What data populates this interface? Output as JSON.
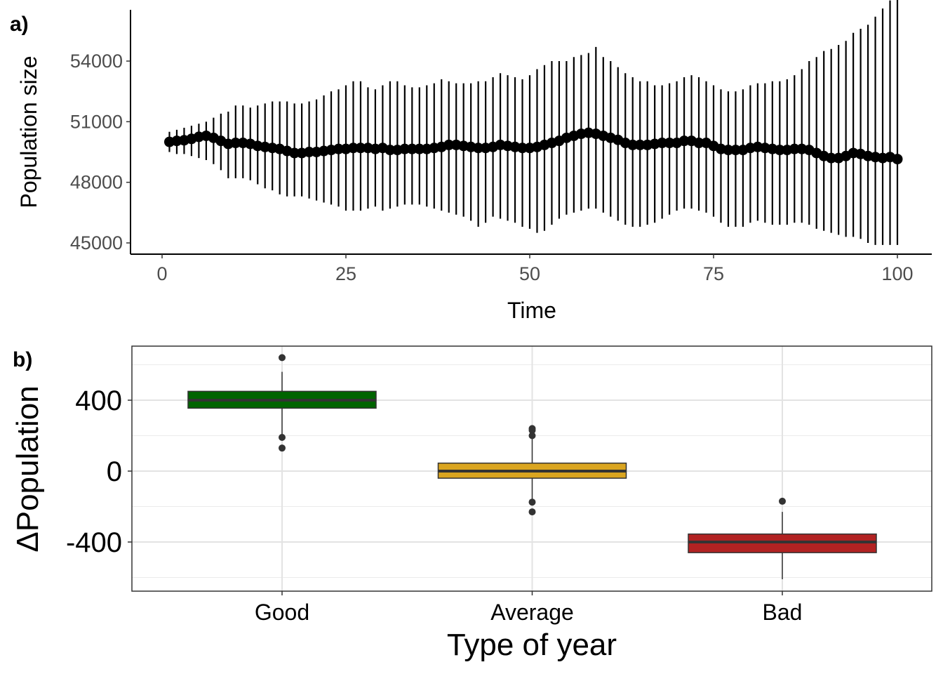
{
  "chart_data": [
    {
      "panel_label": "a)",
      "type": "scatter",
      "xlabel": "Time",
      "ylabel": "Population size",
      "xlim": [
        0,
        100
      ],
      "ylim": [
        44500,
        57800
      ],
      "xticks": [
        0,
        25,
        50,
        75,
        100
      ],
      "xtick_labels": [
        "0",
        "25",
        "50",
        "75",
        "100"
      ],
      "yticks": [
        45000,
        48000,
        51000,
        54000
      ],
      "ytick_labels": [
        "45000",
        "48000",
        "51000",
        "54000"
      ],
      "grid": false,
      "x": [
        1,
        2,
        3,
        4,
        5,
        6,
        7,
        8,
        9,
        10,
        11,
        12,
        13,
        14,
        15,
        16,
        17,
        18,
        19,
        20,
        21,
        22,
        23,
        24,
        25,
        26,
        27,
        28,
        29,
        30,
        31,
        32,
        33,
        34,
        35,
        36,
        37,
        38,
        39,
        40,
        41,
        42,
        43,
        44,
        45,
        46,
        47,
        48,
        49,
        50,
        51,
        52,
        53,
        54,
        55,
        56,
        57,
        58,
        59,
        60,
        61,
        62,
        63,
        64,
        65,
        66,
        67,
        68,
        69,
        70,
        71,
        72,
        73,
        74,
        75,
        76,
        77,
        78,
        79,
        80,
        81,
        82,
        83,
        84,
        85,
        86,
        87,
        88,
        89,
        90,
        91,
        92,
        93,
        94,
        95,
        96,
        97,
        98,
        99,
        100
      ],
      "y": [
        50000,
        50050,
        50080,
        50150,
        50250,
        50300,
        50200,
        50050,
        49900,
        49950,
        49950,
        49900,
        49800,
        49750,
        49700,
        49650,
        49550,
        49450,
        49450,
        49500,
        49500,
        49550,
        49600,
        49650,
        49650,
        49700,
        49700,
        49700,
        49650,
        49700,
        49600,
        49600,
        49650,
        49650,
        49650,
        49650,
        49700,
        49750,
        49850,
        49850,
        49800,
        49750,
        49700,
        49700,
        49750,
        49850,
        49800,
        49750,
        49700,
        49700,
        49750,
        49850,
        49950,
        50050,
        50200,
        50300,
        50400,
        50450,
        50400,
        50300,
        50200,
        50100,
        49950,
        49850,
        49850,
        49850,
        49900,
        49950,
        49950,
        49950,
        50050,
        50050,
        49950,
        49950,
        49800,
        49650,
        49600,
        49600,
        49600,
        49700,
        49750,
        49700,
        49650,
        49600,
        49600,
        49650,
        49650,
        49600,
        49450,
        49300,
        49200,
        49200,
        49300,
        49450,
        49400,
        49300,
        49250,
        49200,
        49250,
        49150
      ],
      "err_low": [
        49500,
        49400,
        49400,
        49300,
        49200,
        49100,
        48900,
        48600,
        48200,
        48200,
        48200,
        48100,
        47900,
        47700,
        47600,
        47400,
        47300,
        47300,
        47300,
        47200,
        47100,
        47000,
        46900,
        46800,
        46600,
        46600,
        46600,
        46700,
        46800,
        46600,
        46700,
        46800,
        46900,
        46900,
        46900,
        46800,
        46700,
        46600,
        46500,
        46400,
        46300,
        46100,
        45800,
        46000,
        46300,
        46200,
        46100,
        46000,
        45800,
        45700,
        45500,
        45600,
        45900,
        46200,
        46400,
        46500,
        46600,
        46700,
        46700,
        46500,
        46300,
        46100,
        45900,
        45800,
        45800,
        45900,
        46000,
        46200,
        46400,
        46600,
        46700,
        46700,
        46600,
        46500,
        46300,
        46000,
        45800,
        45800,
        45800,
        46000,
        46100,
        46000,
        45900,
        45900,
        45900,
        46000,
        46000,
        45900,
        45700,
        45600,
        45500,
        45400,
        45300,
        45300,
        45200,
        45000,
        44900,
        44900,
        44900,
        44900
      ],
      "err_high": [
        50500,
        50600,
        50700,
        50800,
        50900,
        51000,
        51200,
        51400,
        51500,
        51800,
        51800,
        51700,
        51800,
        51900,
        52000,
        52000,
        52000,
        51900,
        51900,
        52000,
        52100,
        52300,
        52500,
        52600,
        52800,
        53000,
        53000,
        52700,
        52600,
        52800,
        53000,
        53000,
        52800,
        52700,
        52700,
        52800,
        52900,
        53100,
        53000,
        52900,
        52900,
        52900,
        53000,
        53000,
        53200,
        53400,
        53300,
        53200,
        53100,
        53300,
        53600,
        53800,
        54000,
        54000,
        54000,
        54200,
        54300,
        54400,
        54700,
        54200,
        54000,
        53700,
        53400,
        53200,
        53000,
        53000,
        52800,
        52800,
        52900,
        53000,
        53200,
        53300,
        53200,
        53000,
        52800,
        52600,
        52500,
        52500,
        52600,
        52800,
        52900,
        52900,
        53000,
        53000,
        53100,
        53300,
        53600,
        54000,
        54200,
        54500,
        54600,
        54800,
        55000,
        55400,
        55600,
        55800,
        56200,
        56600,
        57000,
        57600
      ]
    },
    {
      "panel_label": "b)",
      "type": "box",
      "xlabel": "Type of year",
      "ylabel": "ΔPopulation",
      "ylim": [
        -610,
        700
      ],
      "yticks": [
        -400,
        0,
        400
      ],
      "ytick_labels": [
        "-400",
        "0",
        "400"
      ],
      "grid": true,
      "categories": [
        "Good",
        "Average",
        "Bad"
      ],
      "colors": [
        "#006400",
        "#DAA520",
        "#B22222"
      ],
      "boxes": [
        {
          "category": "Good",
          "q1": 355,
          "median": 400,
          "q3": 450,
          "whisker_low": 200,
          "whisker_high": 560,
          "outliers": [
            640,
            190,
            130
          ]
        },
        {
          "category": "Average",
          "q1": -40,
          "median": 0,
          "q3": 45,
          "whisker_low": -170,
          "whisker_high": 190,
          "outliers": [
            240,
            230,
            200,
            -175,
            -230
          ]
        },
        {
          "category": "Bad",
          "q1": -460,
          "median": -400,
          "q3": -355,
          "whisker_low": -610,
          "whisker_high": -230,
          "outliers": [
            -170
          ]
        }
      ]
    }
  ]
}
